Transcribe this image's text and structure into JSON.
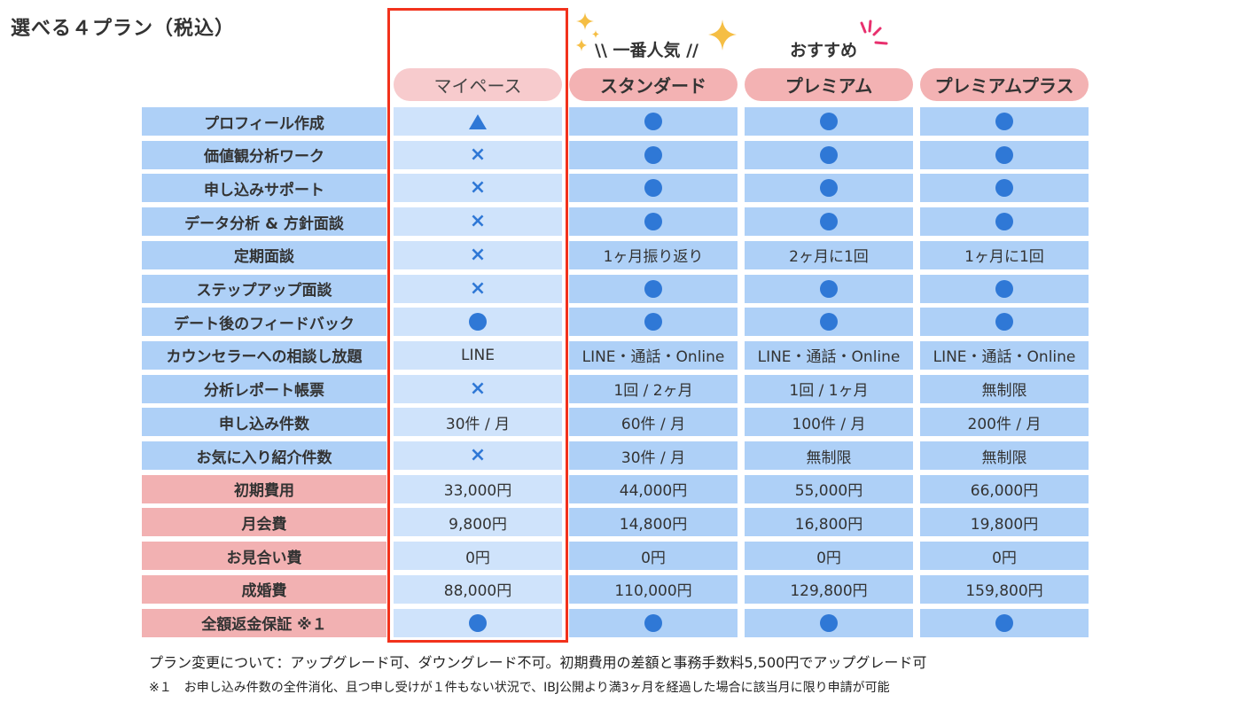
{
  "title": "選べる４プラン（税込）",
  "tags": {
    "popular": "\\\\ 一番人気 //",
    "recommend": "おすすめ"
  },
  "plans": [
    {
      "name": "マイペース",
      "highlighted": true
    },
    {
      "name": "スタンダード"
    },
    {
      "name": "プレミアム"
    },
    {
      "name": "プレミアムプラス"
    }
  ],
  "icons": {
    "circle": "circle-icon",
    "triangle": "triangle-icon",
    "cross": "cross-icon"
  },
  "colors": {
    "accent_blue": "#2f78d6",
    "frame_red": "#f2321c",
    "row_blue": "#aed0f7",
    "row_blue_light": "#cfe3fb",
    "row_pink": "#f2b1b2",
    "pill_pink": "#f3b2b3",
    "pill_pink_light": "#f7cbcd",
    "sparkle_gold": "#f5be44",
    "accent_pink": "#e8306e"
  },
  "rows": [
    {
      "label": "プロフィール作成",
      "type": "feature",
      "values": [
        "▲",
        "●",
        "●",
        "●"
      ]
    },
    {
      "label": "価値観分析ワーク",
      "type": "feature",
      "values": [
        "×",
        "●",
        "●",
        "●"
      ]
    },
    {
      "label": "申し込みサポート",
      "type": "feature",
      "values": [
        "×",
        "●",
        "●",
        "●"
      ]
    },
    {
      "label": "データ分析 & 方針面談",
      "type": "feature",
      "values": [
        "×",
        "●",
        "●",
        "●"
      ]
    },
    {
      "label": "定期面談",
      "type": "feature",
      "values": [
        "×",
        "1ヶ月振り返り",
        "2ヶ月に1回",
        "1ヶ月に1回"
      ]
    },
    {
      "label": "ステップアップ面談",
      "type": "feature",
      "values": [
        "×",
        "●",
        "●",
        "●"
      ]
    },
    {
      "label": "デート後のフィードバック",
      "type": "feature",
      "values": [
        "●",
        "●",
        "●",
        "●"
      ]
    },
    {
      "label": "カウンセラーへの相談し放題",
      "type": "feature",
      "values": [
        "LINE",
        "LINE・通話・Online",
        "LINE・通話・Online",
        "LINE・通話・Online"
      ]
    },
    {
      "label": "分析レポート帳票",
      "type": "feature",
      "values": [
        "×",
        "1回 / 2ヶ月",
        "1回 / 1ヶ月",
        "無制限"
      ]
    },
    {
      "label": "申し込み件数",
      "type": "feature",
      "values": [
        "30件 / 月",
        "60件 / 月",
        "100件 / 月",
        "200件 / 月"
      ]
    },
    {
      "label": "お気に入り紹介件数",
      "type": "feature",
      "values": [
        "×",
        "30件 / 月",
        "無制限",
        "無制限"
      ]
    },
    {
      "label": "初期費用",
      "type": "price",
      "values": [
        "33,000円",
        "44,000円",
        "55,000円",
        "66,000円"
      ]
    },
    {
      "label": "月会費",
      "type": "price",
      "values": [
        "9,800円",
        "14,800円",
        "16,800円",
        "19,800円"
      ]
    },
    {
      "label": "お見合い費",
      "type": "price",
      "values": [
        "0円",
        "0円",
        "0円",
        "0円"
      ]
    },
    {
      "label": "成婚費",
      "type": "price",
      "values": [
        "88,000円",
        "110,000円",
        "129,800円",
        "159,800円"
      ]
    },
    {
      "label": "全額返金保証 ※１",
      "type": "price",
      "values": [
        "●",
        "●",
        "●",
        "●"
      ]
    }
  ],
  "notes": {
    "plan_change": "プラン変更について：アップグレード可、ダウングレード不可。初期費用の差額と事務手数料5,500円でアップグレード可",
    "footnote1": "※１　お申し込み件数の全件消化、且つ申し受けが１件もない状況で、IBJ公開より満3ヶ月を経過した場合に該当月に限り申請が可能"
  }
}
